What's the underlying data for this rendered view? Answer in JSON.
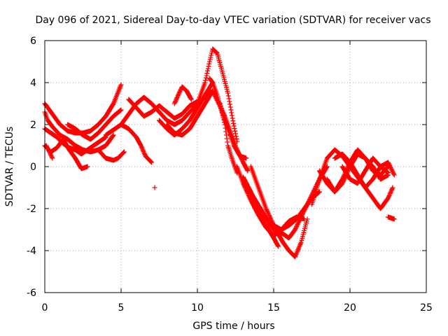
{
  "chart_data": {
    "type": "scatter",
    "title": "Day 096 of 2021, Sidereal Day-to-day VTEC variation (SDTVAR) for receiver vacs",
    "xlabel": "GPS time / hours",
    "ylabel": "SDTVAR / TECUs",
    "xlim": [
      0,
      25
    ],
    "ylim": [
      -6,
      6
    ],
    "xticks": [
      0,
      5,
      10,
      15,
      20,
      25
    ],
    "yticks": [
      -6,
      -4,
      -2,
      0,
      2,
      4,
      6
    ],
    "xtick_labels": [
      "0",
      "5",
      "10",
      "15",
      "20",
      "25"
    ],
    "ytick_labels": [
      "-6",
      "-4",
      "-2",
      "0",
      "2",
      "4",
      "6"
    ],
    "grid": true,
    "marker": "plus",
    "color": "#ff0000",
    "series": [
      {
        "name": "track-1",
        "x": [
          0.0,
          0.5,
          1.0,
          1.5,
          2.0,
          2.5,
          3.0,
          3.5,
          4.0,
          4.5,
          5.0
        ],
        "y": [
          3.0,
          2.5,
          2.0,
          1.7,
          1.6,
          1.6,
          1.7,
          2.0,
          2.4,
          3.0,
          3.9
        ]
      },
      {
        "name": "track-2",
        "x": [
          0.0,
          0.4,
          0.8,
          1.2,
          1.6,
          2.0,
          2.4,
          2.8,
          3.2,
          3.6,
          4.0
        ],
        "y": [
          1.8,
          1.6,
          1.4,
          1.1,
          0.9,
          0.8,
          0.6,
          0.8,
          1.0,
          1.2,
          1.4
        ]
      },
      {
        "name": "track-3",
        "x": [
          0.0,
          0.4,
          0.8,
          1.2,
          1.6,
          2.0,
          2.4,
          2.8
        ],
        "y": [
          1.0,
          0.7,
          0.9,
          1.3,
          0.8,
          0.4,
          -0.1,
          0.0
        ]
      },
      {
        "name": "track-4",
        "x": [
          0.0,
          0.2,
          0.5,
          1.0,
          1.5,
          2.0,
          2.5,
          3.0,
          3.5,
          4.0,
          4.5
        ],
        "y": [
          2.6,
          2.2,
          1.9,
          1.5,
          1.3,
          1.0,
          0.8,
          0.7,
          0.8,
          1.0,
          1.5
        ]
      },
      {
        "name": "track-5",
        "x": [
          1.5,
          2.0,
          2.5,
          3.0,
          3.5,
          4.0,
          4.5,
          5.0
        ],
        "y": [
          2.0,
          1.8,
          1.5,
          1.3,
          1.6,
          2.0,
          2.4,
          2.7
        ]
      },
      {
        "name": "track-6",
        "x": [
          3.5,
          4.0,
          4.5,
          4.8,
          5.2
        ],
        "y": [
          0.8,
          0.4,
          0.3,
          0.4,
          0.7
        ]
      },
      {
        "name": "track-7",
        "x": [
          0.1,
          0.3,
          0.5
        ],
        "y": [
          1.0,
          0.7,
          0.4
        ]
      },
      {
        "name": "track-8",
        "x": [
          4.0,
          5.0,
          5.5,
          6.0,
          6.5,
          7.0,
          7.5,
          8.0,
          8.5,
          9.0,
          9.5,
          10.0,
          10.5,
          11.0
        ],
        "y": [
          1.5,
          2.0,
          2.5,
          3.0,
          3.3,
          3.0,
          2.6,
          2.2,
          2.0,
          2.2,
          2.6,
          3.0,
          3.3,
          3.6
        ]
      },
      {
        "name": "track-9",
        "x": [
          5.0,
          5.5,
          6.0,
          6.3,
          6.6,
          7.0
        ],
        "y": [
          2.0,
          1.8,
          1.4,
          1.0,
          0.5,
          0.2
        ]
      },
      {
        "name": "track-10",
        "x": [
          5.5,
          6.0,
          6.5,
          7.0,
          7.5,
          8.0,
          8.5,
          9.0,
          9.5,
          10.0
        ],
        "y": [
          3.2,
          2.8,
          2.4,
          2.6,
          2.9,
          2.6,
          2.3,
          2.5,
          2.9,
          3.1
        ]
      },
      {
        "name": "track-11",
        "x": [
          7.2
        ],
        "y": [
          -1.0
        ]
      },
      {
        "name": "track-12",
        "x": [
          7.5,
          8.0,
          8.5,
          9.0,
          9.5,
          10.0,
          10.5,
          11.0
        ],
        "y": [
          2.2,
          1.8,
          1.5,
          1.8,
          2.2,
          2.8,
          3.4,
          4.0
        ]
      },
      {
        "name": "track-13",
        "x": [
          8.0,
          8.5,
          9.0,
          9.5,
          10.0,
          10.5,
          11.0
        ],
        "y": [
          2.0,
          1.6,
          1.5,
          1.8,
          2.4,
          3.0,
          3.6
        ]
      },
      {
        "name": "track-14",
        "x": [
          8.5,
          8.8,
          9.0,
          9.3,
          9.6
        ],
        "y": [
          3.0,
          3.5,
          3.8,
          3.6,
          3.2
        ]
      },
      {
        "name": "track-15",
        "x": [
          10.0,
          10.5,
          10.8,
          11.0,
          11.3,
          11.6,
          12.0,
          12.3,
          12.6
        ],
        "y": [
          3.0,
          4.0,
          5.0,
          5.6,
          5.4,
          4.6,
          3.5,
          2.3,
          1.2
        ]
      },
      {
        "name": "track-16",
        "x": [
          10.8,
          11.0,
          11.3,
          11.6,
          12.0,
          12.4,
          12.8,
          13.2
        ],
        "y": [
          4.2,
          4.0,
          3.4,
          2.6,
          1.8,
          1.0,
          0.5,
          0.4
        ]
      },
      {
        "name": "track-17",
        "x": [
          11.0,
          11.4,
          11.8,
          12.2,
          12.6,
          13.0,
          13.3
        ],
        "y": [
          3.6,
          3.0,
          2.4,
          1.6,
          0.8,
          0.2,
          -0.2
        ]
      },
      {
        "name": "track-18",
        "x": [
          11.5,
          11.8,
          12.0,
          12.3,
          12.6
        ],
        "y": [
          3.0,
          2.0,
          1.0,
          0.3,
          -0.3
        ]
      },
      {
        "name": "track-19",
        "x": [
          12.6,
          13.0,
          13.5,
          14.0,
          14.5,
          15.0,
          15.5,
          16.0,
          16.5,
          17.0
        ],
        "y": [
          0.0,
          -0.8,
          -1.6,
          -2.3,
          -2.9,
          -3.3,
          -3.0,
          -2.6,
          -2.4,
          -2.5
        ]
      },
      {
        "name": "track-20",
        "x": [
          13.0,
          13.5,
          14.0,
          14.5,
          15.0,
          15.3
        ],
        "y": [
          -0.5,
          -1.2,
          -2.0,
          -2.8,
          -3.4,
          -3.8
        ]
      },
      {
        "name": "track-21",
        "x": [
          13.3,
          13.8,
          14.3,
          14.8,
          15.2
        ],
        "y": [
          -1.0,
          -1.6,
          -2.2,
          -2.8,
          -3.2
        ]
      },
      {
        "name": "track-22",
        "x": [
          13.5,
          14.0,
          14.5,
          15.0,
          15.5,
          16.0,
          16.5,
          17.0,
          17.5,
          18.0
        ],
        "y": [
          0.0,
          -1.0,
          -2.0,
          -2.8,
          -3.0,
          -2.8,
          -2.5,
          -2.0,
          -1.5,
          -1.2
        ]
      },
      {
        "name": "track-23",
        "x": [
          15.0,
          15.3,
          15.6,
          16.0,
          16.4,
          16.8,
          17.2
        ],
        "y": [
          -2.8,
          -3.2,
          -3.6,
          -4.0,
          -4.3,
          -3.6,
          -2.5
        ]
      },
      {
        "name": "track-24",
        "x": [
          15.2,
          15.6,
          16.0,
          16.4,
          16.8,
          17.2,
          17.6,
          18.0,
          18.5
        ],
        "y": [
          -3.0,
          -3.2,
          -3.4,
          -3.0,
          -2.4,
          -1.8,
          -1.2,
          -0.6,
          0.0
        ]
      },
      {
        "name": "track-25",
        "x": [
          17.5,
          18.0,
          18.5,
          19.0,
          19.5,
          20.0,
          20.5,
          21.0,
          21.5,
          22.0,
          22.5,
          22.8
        ],
        "y": [
          -1.8,
          -0.6,
          0.4,
          0.8,
          0.5,
          0.0,
          -0.5,
          -1.0,
          -1.5,
          -2.0,
          -1.5,
          -1.0
        ]
      },
      {
        "name": "track-26",
        "x": [
          18.0,
          18.5,
          19.0,
          19.5,
          20.0,
          20.5,
          21.0,
          21.5,
          22.0,
          22.5
        ],
        "y": [
          -0.2,
          -0.8,
          -1.2,
          -0.6,
          0.2,
          0.8,
          0.4,
          0.0,
          -0.6,
          -0.4
        ]
      },
      {
        "name": "track-27",
        "x": [
          18.5,
          19.0,
          19.5,
          20.0,
          20.5,
          21.0,
          21.5,
          22.0,
          22.5
        ],
        "y": [
          -0.6,
          -1.2,
          -0.8,
          0.0,
          0.6,
          0.4,
          -0.2,
          -0.4,
          0.0
        ]
      },
      {
        "name": "track-28",
        "x": [
          19.0,
          19.5,
          20.0,
          20.5,
          21.0,
          21.5,
          22.0,
          22.5,
          22.9
        ],
        "y": [
          0.4,
          0.6,
          0.2,
          -0.4,
          -1.0,
          -0.6,
          0.0,
          0.2,
          -0.4
        ]
      },
      {
        "name": "track-29",
        "x": [
          19.5,
          20.0,
          20.5,
          21.0,
          21.5,
          22.0,
          22.5
        ],
        "y": [
          0.0,
          -0.6,
          -0.8,
          -0.2,
          0.4,
          0.0,
          -0.3
        ]
      },
      {
        "name": "track-30",
        "x": [
          22.5,
          22.7,
          22.9
        ],
        "y": [
          -2.4,
          -2.45,
          -2.5
        ]
      }
    ]
  }
}
